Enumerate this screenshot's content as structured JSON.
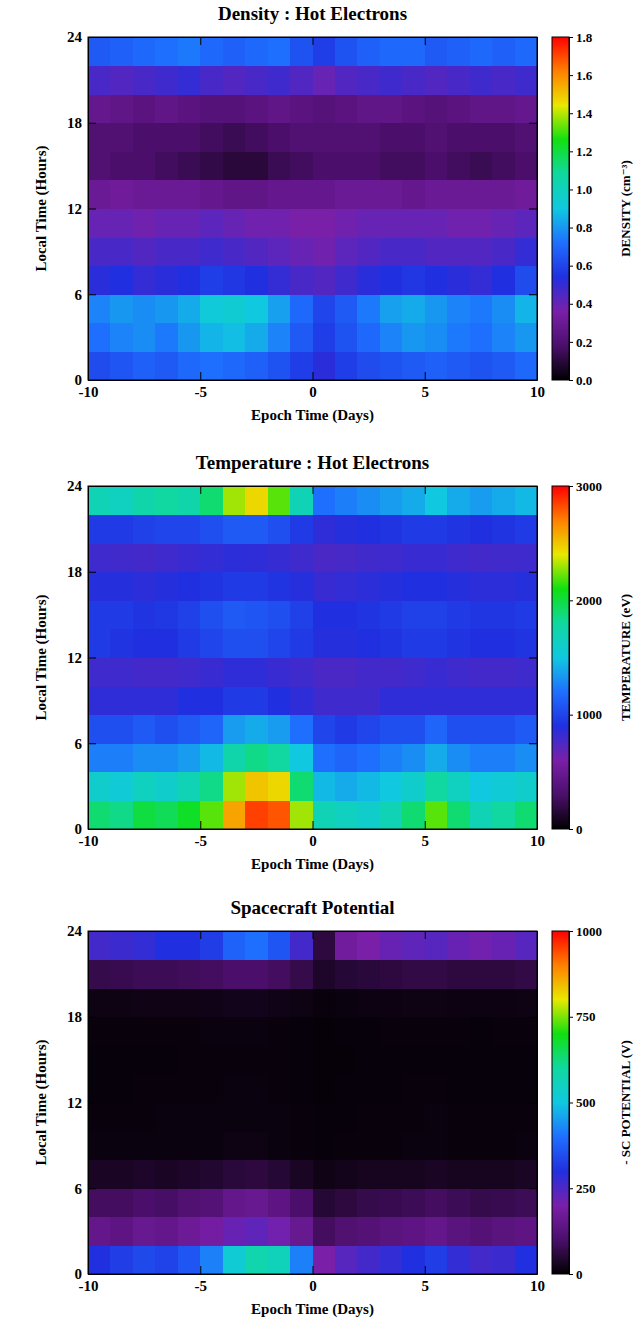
{
  "chart_data": [
    {
      "type": "heatmap",
      "title": "Density : Hot Electrons",
      "xlabel": "Epoch Time (Days)",
      "ylabel": "Local Time (Hours)",
      "xlim": [
        -10,
        10
      ],
      "xticks": [
        -10,
        -5,
        0,
        5,
        10
      ],
      "ylim": [
        0,
        24
      ],
      "yticks": [
        0,
        6,
        12,
        18,
        24
      ],
      "x_edges": [
        -10,
        -9,
        -8,
        -7,
        -6,
        -5,
        -4,
        -3,
        -2,
        -1,
        0,
        1,
        2,
        3,
        4,
        5,
        6,
        7,
        8,
        9,
        10
      ],
      "y_edges": [
        0,
        2,
        4,
        6,
        8,
        10,
        12,
        14,
        16,
        18,
        20,
        22,
        24
      ],
      "cells": [
        [
          0.62,
          0.65,
          0.68,
          0.66,
          0.7,
          0.72,
          0.7,
          0.68,
          0.64,
          0.58,
          0.52,
          0.58,
          0.62,
          0.64,
          0.66,
          0.68,
          0.66,
          0.64,
          0.66,
          0.7
        ],
        [
          0.72,
          0.76,
          0.78,
          0.74,
          0.8,
          0.86,
          0.88,
          0.84,
          0.76,
          0.66,
          0.58,
          0.64,
          0.7,
          0.76,
          0.8,
          0.78,
          0.74,
          0.72,
          0.76,
          0.8
        ],
        [
          0.76,
          0.8,
          0.78,
          0.8,
          0.84,
          0.92,
          0.94,
          0.9,
          0.82,
          0.7,
          0.6,
          0.66,
          0.74,
          0.82,
          0.84,
          0.8,
          0.76,
          0.74,
          0.78,
          0.86
        ],
        [
          0.52,
          0.54,
          0.5,
          0.52,
          0.54,
          0.58,
          0.56,
          0.54,
          0.5,
          0.46,
          0.44,
          0.48,
          0.52,
          0.54,
          0.56,
          0.54,
          0.52,
          0.5,
          0.54,
          0.62
        ],
        [
          0.46,
          0.46,
          0.44,
          0.46,
          0.46,
          0.48,
          0.46,
          0.44,
          0.42,
          0.4,
          0.38,
          0.42,
          0.44,
          0.46,
          0.46,
          0.44,
          0.44,
          0.44,
          0.46,
          0.5
        ],
        [
          0.4,
          0.4,
          0.38,
          0.4,
          0.4,
          0.42,
          0.4,
          0.38,
          0.38,
          0.36,
          0.36,
          0.38,
          0.4,
          0.4,
          0.4,
          0.4,
          0.38,
          0.38,
          0.4,
          0.42
        ],
        [
          0.3,
          0.32,
          0.3,
          0.3,
          0.3,
          0.28,
          0.26,
          0.26,
          0.28,
          0.28,
          0.28,
          0.3,
          0.3,
          0.3,
          0.28,
          0.3,
          0.3,
          0.3,
          0.3,
          0.32
        ],
        [
          0.2,
          0.18,
          0.18,
          0.16,
          0.14,
          0.12,
          0.1,
          0.1,
          0.14,
          0.16,
          0.18,
          0.18,
          0.18,
          0.16,
          0.16,
          0.18,
          0.16,
          0.14,
          0.16,
          0.18
        ],
        [
          0.2,
          0.2,
          0.18,
          0.18,
          0.18,
          0.16,
          0.14,
          0.16,
          0.18,
          0.2,
          0.2,
          0.2,
          0.2,
          0.18,
          0.18,
          0.2,
          0.18,
          0.18,
          0.18,
          0.2
        ],
        [
          0.28,
          0.26,
          0.24,
          0.26,
          0.24,
          0.22,
          0.22,
          0.24,
          0.26,
          0.24,
          0.22,
          0.24,
          0.26,
          0.26,
          0.24,
          0.22,
          0.24,
          0.26,
          0.26,
          0.28
        ],
        [
          0.46,
          0.44,
          0.46,
          0.48,
          0.5,
          0.46,
          0.44,
          0.46,
          0.48,
          0.44,
          0.4,
          0.44,
          0.46,
          0.48,
          0.46,
          0.44,
          0.46,
          0.48,
          0.46,
          0.48
        ],
        [
          0.66,
          0.68,
          0.7,
          0.72,
          0.74,
          0.7,
          0.68,
          0.7,
          0.72,
          0.64,
          0.58,
          0.64,
          0.68,
          0.7,
          0.7,
          0.66,
          0.68,
          0.7,
          0.68,
          0.7
        ]
      ],
      "colorbar": {
        "label": "DENSITY (cm⁻³)",
        "lim": [
          0,
          1.8
        ],
        "ticks": [
          {
            "value": 0,
            "label": "0.0"
          },
          0.2,
          0.4,
          0.6,
          0.8,
          {
            "value": 1,
            "label": "1.0"
          },
          1.2,
          1.4,
          1.6,
          1.8
        ]
      }
    },
    {
      "type": "heatmap",
      "title": "Temperature : Hot Electrons",
      "xlabel": "Epoch Time (Days)",
      "ylabel": "Local Time (Hours)",
      "xlim": [
        -10,
        10
      ],
      "xticks": [
        -10,
        -5,
        0,
        5,
        10
      ],
      "ylim": [
        0,
        24
      ],
      "yticks": [
        0,
        6,
        12,
        18,
        24
      ],
      "x_edges": [
        -10,
        -9,
        -8,
        -7,
        -6,
        -5,
        -4,
        -3,
        -2,
        -1,
        0,
        1,
        2,
        3,
        4,
        5,
        6,
        7,
        8,
        9,
        10
      ],
      "y_edges": [
        0,
        2,
        4,
        6,
        8,
        10,
        12,
        14,
        16,
        18,
        20,
        22,
        24
      ],
      "cells": [
        [
          1900,
          1850,
          2000,
          1950,
          2050,
          2200,
          2600,
          2850,
          2800,
          2300,
          1700,
          1650,
          1600,
          1700,
          1900,
          2200,
          1900,
          1700,
          1800,
          1900
        ],
        [
          1600,
          1550,
          1650,
          1600,
          1700,
          1850,
          2300,
          2500,
          2450,
          1900,
          1450,
          1400,
          1450,
          1500,
          1600,
          1800,
          1650,
          1500,
          1550,
          1600
        ],
        [
          1250,
          1250,
          1300,
          1300,
          1350,
          1450,
          1750,
          1850,
          1800,
          1500,
          1200,
          1150,
          1200,
          1250,
          1300,
          1400,
          1300,
          1250,
          1250,
          1300
        ],
        [
          1050,
          1050,
          1100,
          1050,
          1100,
          1150,
          1350,
          1400,
          1350,
          1200,
          1000,
          950,
          1000,
          1050,
          1050,
          1150,
          1050,
          1050,
          1050,
          1100
        ],
        [
          850,
          850,
          850,
          850,
          900,
          900,
          950,
          950,
          900,
          850,
          800,
          800,
          800,
          850,
          850,
          850,
          850,
          850,
          850,
          850
        ],
        [
          800,
          800,
          780,
          780,
          800,
          820,
          850,
          850,
          820,
          800,
          760,
          760,
          780,
          780,
          800,
          820,
          800,
          780,
          780,
          800
        ],
        [
          950,
          920,
          900,
          900,
          950,
          1000,
          1050,
          1050,
          1000,
          950,
          880,
          880,
          900,
          920,
          950,
          950,
          920,
          900,
          900,
          920
        ],
        [
          950,
          950,
          920,
          940,
          980,
          1050,
          1100,
          1080,
          1050,
          980,
          900,
          900,
          920,
          950,
          980,
          980,
          950,
          930,
          930,
          950
        ],
        [
          880,
          880,
          860,
          880,
          900,
          920,
          950,
          950,
          920,
          880,
          820,
          840,
          860,
          880,
          900,
          900,
          880,
          860,
          860,
          880
        ],
        [
          800,
          790,
          780,
          800,
          820,
          840,
          860,
          850,
          830,
          800,
          760,
          770,
          790,
          800,
          820,
          820,
          800,
          780,
          790,
          800
        ],
        [
          950,
          950,
          980,
          1000,
          1000,
          1050,
          1100,
          1100,
          1050,
          950,
          850,
          880,
          900,
          920,
          950,
          950,
          920,
          900,
          920,
          950
        ],
        [
          1700,
          1650,
          1750,
          1800,
          1750,
          1900,
          2300,
          2450,
          2200,
          1700,
          1200,
          1250,
          1300,
          1350,
          1400,
          1500,
          1400,
          1350,
          1400,
          1450
        ]
      ],
      "colorbar": {
        "label": "TEMPERATURE (eV)",
        "lim": [
          0,
          3000
        ],
        "ticks": [
          0,
          1000,
          2000,
          3000
        ]
      }
    },
    {
      "type": "heatmap",
      "title": "Spacecraft Potential",
      "xlabel": "Epoch Time (Days)",
      "ylabel": "Local Time (Hours)",
      "xlim": [
        -10,
        10
      ],
      "xticks": [
        -10,
        -5,
        0,
        5,
        10
      ],
      "ylim": [
        0,
        24
      ],
      "yticks": [
        0,
        6,
        12,
        18,
        24
      ],
      "x_edges": [
        -10,
        -9,
        -8,
        -7,
        -6,
        -5,
        -4,
        -3,
        -2,
        -1,
        0,
        1,
        2,
        3,
        4,
        5,
        6,
        7,
        8,
        9,
        10
      ],
      "y_edges": [
        0,
        2,
        4,
        6,
        8,
        10,
        12,
        14,
        16,
        18,
        20,
        22,
        24
      ],
      "cells": [
        [
          300,
          320,
          340,
          330,
          360,
          420,
          520,
          580,
          560,
          420,
          200,
          240,
          260,
          280,
          300,
          320,
          280,
          260,
          270,
          300
        ],
        [
          150,
          140,
          160,
          150,
          170,
          190,
          220,
          230,
          210,
          160,
          90,
          110,
          120,
          130,
          140,
          150,
          130,
          120,
          130,
          140
        ],
        [
          90,
          90,
          100,
          95,
          110,
          120,
          150,
          160,
          140,
          100,
          50,
          60,
          70,
          75,
          80,
          90,
          80,
          70,
          75,
          80
        ],
        [
          35,
          35,
          40,
          35,
          40,
          45,
          55,
          60,
          50,
          35,
          20,
          25,
          30,
          30,
          30,
          35,
          30,
          30,
          30,
          35
        ],
        [
          15,
          15,
          15,
          15,
          15,
          15,
          18,
          18,
          15,
          12,
          10,
          12,
          12,
          12,
          15,
          15,
          12,
          12,
          12,
          15
        ],
        [
          12,
          12,
          12,
          14,
          14,
          14,
          15,
          15,
          14,
          12,
          10,
          10,
          12,
          12,
          12,
          14,
          12,
          12,
          12,
          12
        ],
        [
          10,
          10,
          12,
          12,
          12,
          12,
          14,
          14,
          12,
          10,
          8,
          10,
          10,
          10,
          12,
          12,
          10,
          10,
          10,
          10
        ],
        [
          10,
          10,
          10,
          10,
          12,
          12,
          12,
          12,
          12,
          10,
          8,
          8,
          10,
          10,
          10,
          10,
          10,
          10,
          10,
          10
        ],
        [
          12,
          12,
          12,
          12,
          12,
          14,
          14,
          14,
          12,
          10,
          8,
          10,
          10,
          12,
          12,
          12,
          12,
          10,
          12,
          12
        ],
        [
          18,
          18,
          20,
          20,
          20,
          22,
          24,
          24,
          22,
          18,
          12,
          14,
          16,
          16,
          18,
          18,
          16,
          16,
          16,
          18
        ],
        [
          70,
          75,
          80,
          80,
          85,
          90,
          100,
          100,
          90,
          70,
          40,
          50,
          55,
          60,
          65,
          65,
          60,
          60,
          60,
          65
        ],
        [
          260,
          270,
          280,
          300,
          300,
          320,
          380,
          400,
          360,
          260,
          60,
          180,
          200,
          220,
          230,
          240,
          220,
          210,
          220,
          240
        ]
      ],
      "colorbar": {
        "label": "- SC POTENTIAL (V)",
        "lim": [
          0,
          1000
        ],
        "ticks": [
          0,
          250,
          500,
          750,
          1000
        ]
      }
    }
  ]
}
